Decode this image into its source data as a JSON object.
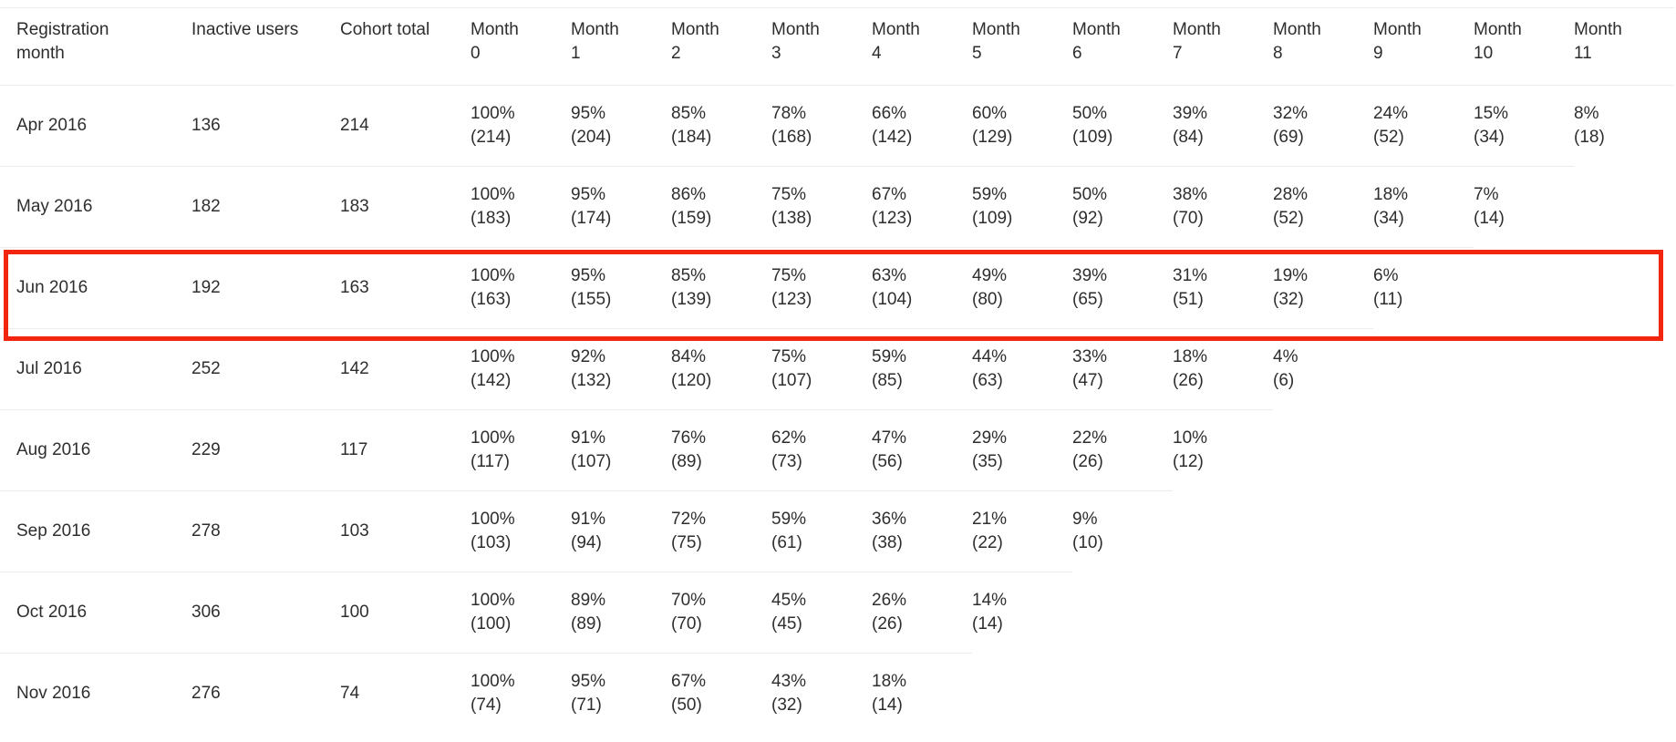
{
  "table": {
    "columns": [
      "Registration month",
      "Inactive users",
      "Cohort total",
      "Month 0",
      "Month 1",
      "Month 2",
      "Month 3",
      "Month 4",
      "Month 5",
      "Month 6",
      "Month 7",
      "Month 8",
      "Month 9",
      "Month 10",
      "Month 11"
    ],
    "highlight": {
      "row": "Jun 2016",
      "row_index": 2,
      "color": "#f2250f"
    },
    "rows": [
      {
        "month": "Apr 2016",
        "inactive_users": "136",
        "cohort_total": "214",
        "cells": [
          {
            "pct": "100%",
            "count": "(214)"
          },
          {
            "pct": "95%",
            "count": "(204)"
          },
          {
            "pct": "85%",
            "count": "(184)"
          },
          {
            "pct": "78%",
            "count": "(168)"
          },
          {
            "pct": "66%",
            "count": "(142)"
          },
          {
            "pct": "60%",
            "count": "(129)"
          },
          {
            "pct": "50%",
            "count": "(109)"
          },
          {
            "pct": "39%",
            "count": "(84)"
          },
          {
            "pct": "32%",
            "count": "(69)"
          },
          {
            "pct": "24%",
            "count": "(52)"
          },
          {
            "pct": "15%",
            "count": "(34)"
          },
          {
            "pct": "8%",
            "count": "(18)"
          }
        ]
      },
      {
        "month": "May 2016",
        "inactive_users": "182",
        "cohort_total": "183",
        "cells": [
          {
            "pct": "100%",
            "count": "(183)"
          },
          {
            "pct": "95%",
            "count": "(174)"
          },
          {
            "pct": "86%",
            "count": "(159)"
          },
          {
            "pct": "75%",
            "count": "(138)"
          },
          {
            "pct": "67%",
            "count": "(123)"
          },
          {
            "pct": "59%",
            "count": "(109)"
          },
          {
            "pct": "50%",
            "count": "(92)"
          },
          {
            "pct": "38%",
            "count": "(70)"
          },
          {
            "pct": "28%",
            "count": "(52)"
          },
          {
            "pct": "18%",
            "count": "(34)"
          },
          {
            "pct": "7%",
            "count": "(14)"
          },
          null
        ]
      },
      {
        "month": "Jun 2016",
        "inactive_users": "192",
        "cohort_total": "163",
        "cells": [
          {
            "pct": "100%",
            "count": "(163)"
          },
          {
            "pct": "95%",
            "count": "(155)"
          },
          {
            "pct": "85%",
            "count": "(139)"
          },
          {
            "pct": "75%",
            "count": "(123)"
          },
          {
            "pct": "63%",
            "count": "(104)"
          },
          {
            "pct": "49%",
            "count": "(80)"
          },
          {
            "pct": "39%",
            "count": "(65)"
          },
          {
            "pct": "31%",
            "count": "(51)"
          },
          {
            "pct": "19%",
            "count": "(32)"
          },
          {
            "pct": "6%",
            "count": "(11)"
          },
          null,
          null
        ]
      },
      {
        "month": "Jul 2016",
        "inactive_users": "252",
        "cohort_total": "142",
        "cells": [
          {
            "pct": "100%",
            "count": "(142)"
          },
          {
            "pct": "92%",
            "count": "(132)"
          },
          {
            "pct": "84%",
            "count": "(120)"
          },
          {
            "pct": "75%",
            "count": "(107)"
          },
          {
            "pct": "59%",
            "count": "(85)"
          },
          {
            "pct": "44%",
            "count": "(63)"
          },
          {
            "pct": "33%",
            "count": "(47)"
          },
          {
            "pct": "18%",
            "count": "(26)"
          },
          {
            "pct": "4%",
            "count": "(6)"
          },
          null,
          null,
          null
        ]
      },
      {
        "month": "Aug 2016",
        "inactive_users": "229",
        "cohort_total": "117",
        "cells": [
          {
            "pct": "100%",
            "count": "(117)"
          },
          {
            "pct": "91%",
            "count": "(107)"
          },
          {
            "pct": "76%",
            "count": "(89)"
          },
          {
            "pct": "62%",
            "count": "(73)"
          },
          {
            "pct": "47%",
            "count": "(56)"
          },
          {
            "pct": "29%",
            "count": "(35)"
          },
          {
            "pct": "22%",
            "count": "(26)"
          },
          {
            "pct": "10%",
            "count": "(12)"
          },
          null,
          null,
          null,
          null
        ]
      },
      {
        "month": "Sep 2016",
        "inactive_users": "278",
        "cohort_total": "103",
        "cells": [
          {
            "pct": "100%",
            "count": "(103)"
          },
          {
            "pct": "91%",
            "count": "(94)"
          },
          {
            "pct": "72%",
            "count": "(75)"
          },
          {
            "pct": "59%",
            "count": "(61)"
          },
          {
            "pct": "36%",
            "count": "(38)"
          },
          {
            "pct": "21%",
            "count": "(22)"
          },
          {
            "pct": "9%",
            "count": "(10)"
          },
          null,
          null,
          null,
          null,
          null
        ]
      },
      {
        "month": "Oct 2016",
        "inactive_users": "306",
        "cohort_total": "100",
        "cells": [
          {
            "pct": "100%",
            "count": "(100)"
          },
          {
            "pct": "89%",
            "count": "(89)"
          },
          {
            "pct": "70%",
            "count": "(70)"
          },
          {
            "pct": "45%",
            "count": "(45)"
          },
          {
            "pct": "26%",
            "count": "(26)"
          },
          {
            "pct": "14%",
            "count": "(14)"
          },
          null,
          null,
          null,
          null,
          null,
          null
        ]
      },
      {
        "month": "Nov 2016",
        "inactive_users": "276",
        "cohort_total": "74",
        "cells": [
          {
            "pct": "100%",
            "count": "(74)"
          },
          {
            "pct": "95%",
            "count": "(71)"
          },
          {
            "pct": "67%",
            "count": "(50)"
          },
          {
            "pct": "43%",
            "count": "(32)"
          },
          {
            "pct": "18%",
            "count": "(14)"
          },
          null,
          null,
          null,
          null,
          null,
          null,
          null
        ]
      }
    ]
  }
}
